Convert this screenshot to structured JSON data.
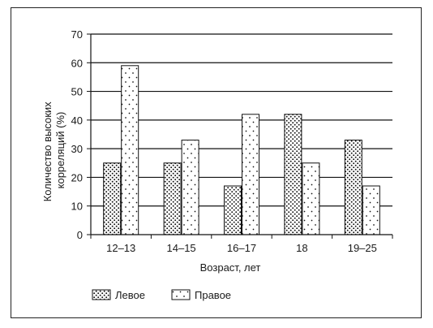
{
  "chart_data": {
    "type": "bar",
    "categories": [
      "12–13",
      "14–15",
      "16–17",
      "18",
      "19–25"
    ],
    "series": [
      {
        "name": "Левое",
        "values": [
          25,
          25,
          17,
          42,
          33
        ],
        "pattern": "dense-dots"
      },
      {
        "name": "Правое",
        "values": [
          59,
          33,
          42,
          25,
          17
        ],
        "pattern": "sparse-dots"
      }
    ],
    "title": "",
    "xlabel": "Возраст, лет",
    "ylabel": "Количество высоких корреляций (%)",
    "ylabel_lines": [
      "Количество высоких",
      "корреляций (%)"
    ],
    "ylim": [
      0,
      70
    ],
    "yticks": [
      0,
      10,
      20,
      30,
      40,
      50,
      60,
      70
    ],
    "grid": "horizontal",
    "legend": "bottom-left",
    "colors": {
      "bar_fill": "#ffffff",
      "stroke": "#111111",
      "grid": "#111111"
    }
  }
}
